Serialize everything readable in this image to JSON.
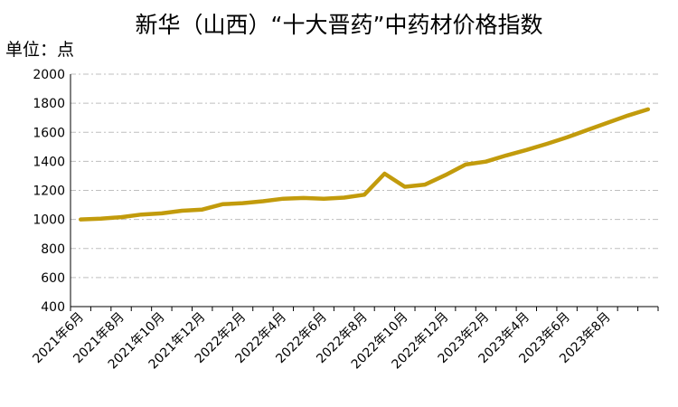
{
  "chart_data": {
    "type": "line",
    "title": "新华（山西）“十大晋药”中药材价格指数",
    "unit_label": "单位：点",
    "ylim": [
      400,
      2000
    ],
    "y_ticks": [
      400,
      600,
      800,
      1000,
      1200,
      1400,
      1600,
      1800,
      2000
    ],
    "x_tick_labels": [
      "2021年6月",
      "2021年8月",
      "2021年10月",
      "2021年12月",
      "2022年2月",
      "2022年4月",
      "2022年6月",
      "2022年8月",
      "2022年10月",
      "2022年12月",
      "2023年2月",
      "2023年4月",
      "2023年6月",
      "2023年8月"
    ],
    "grid": "horizontal-dashed",
    "line_color": "#C29B0C",
    "x": [
      "2021-06",
      "2021-07",
      "2021-08",
      "2021-09",
      "2021-10",
      "2021-11",
      "2021-12",
      "2022-01",
      "2022-02",
      "2022-03",
      "2022-04",
      "2022-05",
      "2022-06",
      "2022-07",
      "2022-08",
      "2022-09",
      "2022-10",
      "2022-11",
      "2022-12",
      "2023-01",
      "2023-02",
      "2023-03",
      "2023-04",
      "2023-05",
      "2023-06",
      "2023-07",
      "2023-08",
      "2023-09",
      "2023-10"
    ],
    "series": [
      {
        "values": [
          1000,
          1005,
          1016,
          1034,
          1042,
          1060,
          1068,
          1105,
          1112,
          1125,
          1143,
          1148,
          1142,
          1150,
          1170,
          1315,
          1225,
          1240,
          1305,
          1378,
          1398,
          1440,
          1478,
          1520,
          1565,
          1615,
          1665,
          1715,
          1758
        ]
      }
    ]
  }
}
